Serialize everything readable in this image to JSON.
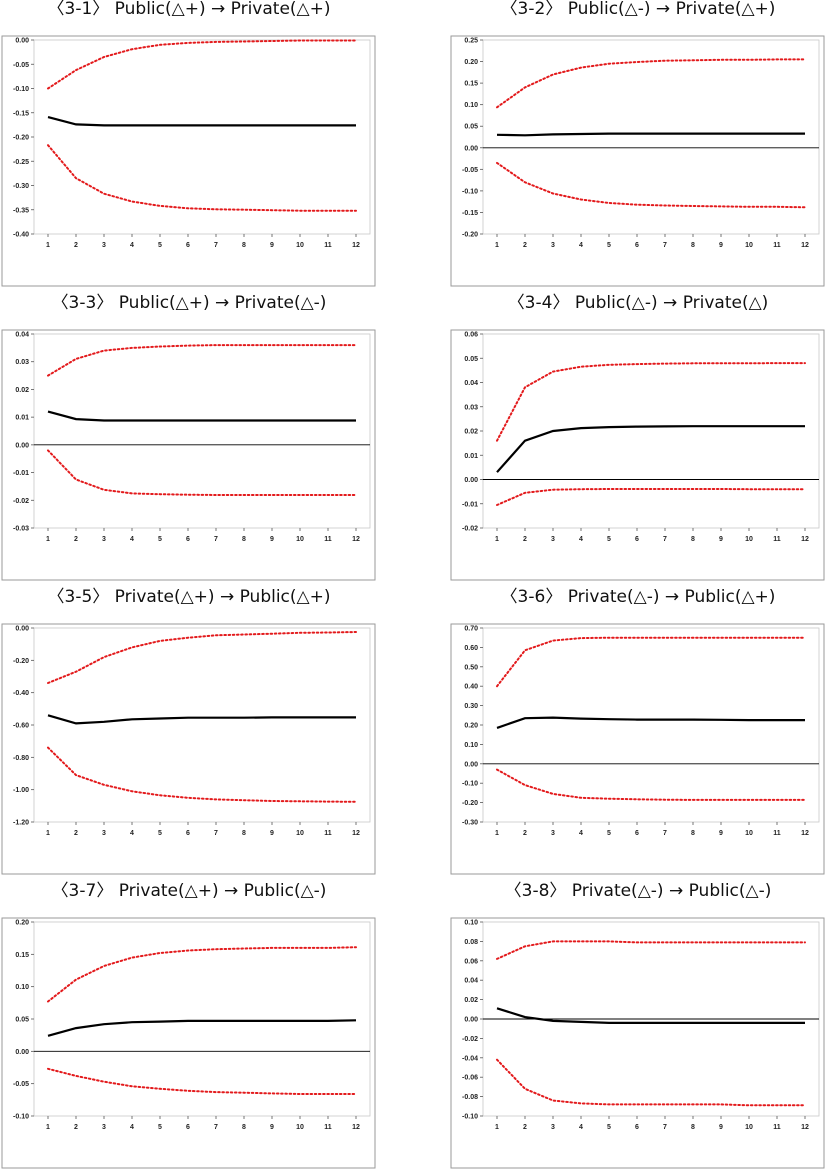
{
  "colors": {
    "estimate": "#000000",
    "band": "#e31a1c",
    "frame": "#9a9a9a"
  },
  "chart_data": [
    {
      "type": "line",
      "title": "〈3-1〉 Public(△+) → Private(△+)",
      "x": [
        1,
        2,
        3,
        4,
        5,
        6,
        7,
        8,
        9,
        10,
        11,
        12
      ],
      "yticks": [
        "0.00",
        "-0.05",
        "-0.10",
        "-0.15",
        "-0.20",
        "-0.25",
        "-0.30",
        "-0.35",
        "-0.40"
      ],
      "ylim": [
        -0.4,
        0.0
      ],
      "series": [
        {
          "role": "upper",
          "values": [
            -0.1,
            -0.062,
            -0.035,
            -0.019,
            -0.01,
            -0.006,
            -0.004,
            -0.003,
            -0.002,
            -0.001,
            -0.001,
            -0.001
          ]
        },
        {
          "role": "estimate",
          "values": [
            -0.159,
            -0.174,
            -0.176,
            -0.176,
            -0.176,
            -0.176,
            -0.176,
            -0.176,
            -0.176,
            -0.176,
            -0.176,
            -0.176
          ]
        },
        {
          "role": "lower",
          "values": [
            -0.217,
            -0.285,
            -0.317,
            -0.333,
            -0.342,
            -0.347,
            -0.349,
            -0.35,
            -0.351,
            -0.352,
            -0.352,
            -0.352
          ]
        }
      ]
    },
    {
      "type": "line",
      "title": "〈3-2〉 Public(△-) → Private(△+)",
      "x": [
        1,
        2,
        3,
        4,
        5,
        6,
        7,
        8,
        9,
        10,
        11,
        12
      ],
      "yticks": [
        "0.25",
        "0.20",
        "0.15",
        "0.10",
        "0.05",
        "0.00",
        "-0.05",
        "-0.10",
        "-0.15",
        "-0.20"
      ],
      "ylim": [
        -0.2,
        0.25
      ],
      "series": [
        {
          "role": "upper",
          "values": [
            0.094,
            0.14,
            0.17,
            0.186,
            0.195,
            0.199,
            0.202,
            0.203,
            0.204,
            0.204,
            0.205,
            0.205
          ]
        },
        {
          "role": "estimate",
          "values": [
            0.03,
            0.029,
            0.031,
            0.032,
            0.033,
            0.033,
            0.033,
            0.033,
            0.033,
            0.033,
            0.033,
            0.033
          ]
        },
        {
          "role": "lower",
          "values": [
            -0.035,
            -0.08,
            -0.106,
            -0.12,
            -0.128,
            -0.132,
            -0.134,
            -0.135,
            -0.136,
            -0.137,
            -0.137,
            -0.138
          ]
        }
      ]
    },
    {
      "type": "line",
      "title": "〈3-3〉 Public(△+) → Private(△-)",
      "x": [
        1,
        2,
        3,
        4,
        5,
        6,
        7,
        8,
        9,
        10,
        11,
        12
      ],
      "yticks": [
        "0.04",
        "0.03",
        "0.02",
        "0.01",
        "0.00",
        "-0.01",
        "-0.02",
        "-0.03"
      ],
      "ylim": [
        -0.03,
        0.04
      ],
      "series": [
        {
          "role": "upper",
          "values": [
            0.025,
            0.031,
            0.034,
            0.035,
            0.0355,
            0.0358,
            0.036,
            0.036,
            0.036,
            0.036,
            0.036,
            0.036
          ]
        },
        {
          "role": "estimate",
          "values": [
            0.012,
            0.0093,
            0.0088,
            0.0088,
            0.0088,
            0.0088,
            0.0088,
            0.0088,
            0.0088,
            0.0088,
            0.0088,
            0.0088
          ]
        },
        {
          "role": "lower",
          "values": [
            -0.002,
            -0.0125,
            -0.0162,
            -0.0175,
            -0.0178,
            -0.018,
            -0.0181,
            -0.0181,
            -0.0181,
            -0.0181,
            -0.0181,
            -0.0181
          ]
        }
      ]
    },
    {
      "type": "line",
      "title": "〈3-4〉 Public(△-) → Private(△)",
      "x": [
        1,
        2,
        3,
        4,
        5,
        6,
        7,
        8,
        9,
        10,
        11,
        12
      ],
      "yticks": [
        "0.06",
        "0.05",
        "0.04",
        "0.03",
        "0.02",
        "0.01",
        "0.00",
        "-0.01",
        "-0.02"
      ],
      "ylim": [
        -0.02,
        0.06
      ],
      "series": [
        {
          "role": "upper",
          "values": [
            0.016,
            0.038,
            0.0445,
            0.0465,
            0.0473,
            0.0476,
            0.0478,
            0.0479,
            0.0479,
            0.0479,
            0.048,
            0.048
          ]
        },
        {
          "role": "estimate",
          "values": [
            0.003,
            0.016,
            0.02,
            0.0212,
            0.0216,
            0.0218,
            0.0219,
            0.022,
            0.022,
            0.022,
            0.022,
            0.022
          ]
        },
        {
          "role": "lower",
          "values": [
            -0.0105,
            -0.0055,
            -0.0042,
            -0.004,
            -0.0039,
            -0.0039,
            -0.0039,
            -0.0039,
            -0.0039,
            -0.004,
            -0.004,
            -0.004
          ]
        }
      ]
    },
    {
      "type": "line",
      "title": "〈3-5〉 Private(△+) → Public(△+)",
      "x": [
        1,
        2,
        3,
        4,
        5,
        6,
        7,
        8,
        9,
        10,
        11,
        12
      ],
      "yticks": [
        "0.00",
        "-0.20",
        "-0.40",
        "-0.60",
        "-0.80",
        "-1.00",
        "-1.20"
      ],
      "ylim": [
        -1.2,
        0.0
      ],
      "series": [
        {
          "role": "upper",
          "values": [
            -0.34,
            -0.27,
            -0.18,
            -0.12,
            -0.08,
            -0.06,
            -0.045,
            -0.04,
            -0.035,
            -0.03,
            -0.028,
            -0.025
          ]
        },
        {
          "role": "estimate",
          "values": [
            -0.54,
            -0.59,
            -0.58,
            -0.565,
            -0.56,
            -0.555,
            -0.555,
            -0.555,
            -0.553,
            -0.553,
            -0.553,
            -0.553
          ]
        },
        {
          "role": "lower",
          "values": [
            -0.74,
            -0.91,
            -0.97,
            -1.01,
            -1.035,
            -1.05,
            -1.06,
            -1.065,
            -1.07,
            -1.072,
            -1.074,
            -1.075
          ]
        }
      ]
    },
    {
      "type": "line",
      "title": "〈3-6〉 Private(△-) → Public(△+)",
      "x": [
        1,
        2,
        3,
        4,
        5,
        6,
        7,
        8,
        9,
        10,
        11,
        12
      ],
      "yticks": [
        "0.70",
        "0.60",
        "0.50",
        "0.40",
        "0.30",
        "0.20",
        "0.10",
        "0.00",
        "-0.10",
        "-0.20",
        "-0.30"
      ],
      "ylim": [
        -0.3,
        0.7
      ],
      "series": [
        {
          "role": "upper",
          "values": [
            0.4,
            0.585,
            0.635,
            0.648,
            0.65,
            0.65,
            0.65,
            0.65,
            0.65,
            0.65,
            0.65,
            0.65
          ]
        },
        {
          "role": "estimate",
          "values": [
            0.185,
            0.235,
            0.238,
            0.233,
            0.23,
            0.228,
            0.228,
            0.228,
            0.227,
            0.225,
            0.225,
            0.225
          ]
        },
        {
          "role": "lower",
          "values": [
            -0.03,
            -0.11,
            -0.155,
            -0.175,
            -0.18,
            -0.183,
            -0.185,
            -0.186,
            -0.186,
            -0.186,
            -0.186,
            -0.186
          ]
        }
      ]
    },
    {
      "type": "line",
      "title": "〈3-7〉 Private(△+) → Public(△-)",
      "x": [
        1,
        2,
        3,
        4,
        5,
        6,
        7,
        8,
        9,
        10,
        11,
        12
      ],
      "yticks": [
        "0.20",
        "0.15",
        "0.10",
        "0.05",
        "0.00",
        "-0.05",
        "-0.10"
      ],
      "ylim": [
        -0.1,
        0.2
      ],
      "series": [
        {
          "role": "upper",
          "values": [
            0.077,
            0.111,
            0.132,
            0.145,
            0.152,
            0.156,
            0.158,
            0.159,
            0.16,
            0.16,
            0.16,
            0.161
          ]
        },
        {
          "role": "estimate",
          "values": [
            0.024,
            0.036,
            0.042,
            0.045,
            0.046,
            0.047,
            0.047,
            0.047,
            0.047,
            0.047,
            0.047,
            0.048
          ]
        },
        {
          "role": "lower",
          "values": [
            -0.027,
            -0.038,
            -0.047,
            -0.054,
            -0.058,
            -0.061,
            -0.063,
            -0.064,
            -0.065,
            -0.066,
            -0.066,
            -0.066
          ]
        }
      ]
    },
    {
      "type": "line",
      "title": "〈3-8〉 Private(△-) → Public(△-)",
      "x": [
        1,
        2,
        3,
        4,
        5,
        6,
        7,
        8,
        9,
        10,
        11,
        12
      ],
      "yticks": [
        "0.10",
        "0.08",
        "0.06",
        "0.04",
        "0.02",
        "0.00",
        "-0.02",
        "-0.04",
        "-0.06",
        "-0.08",
        "-0.10"
      ],
      "ylim": [
        -0.1,
        0.1
      ],
      "series": [
        {
          "role": "upper",
          "values": [
            0.062,
            0.075,
            0.08,
            0.08,
            0.08,
            0.079,
            0.079,
            0.079,
            0.079,
            0.079,
            0.079,
            0.079
          ]
        },
        {
          "role": "estimate",
          "values": [
            0.011,
            0.002,
            -0.002,
            -0.003,
            -0.004,
            -0.004,
            -0.004,
            -0.004,
            -0.004,
            -0.004,
            -0.004,
            -0.004
          ]
        },
        {
          "role": "lower",
          "values": [
            -0.042,
            -0.072,
            -0.084,
            -0.087,
            -0.088,
            -0.088,
            -0.088,
            -0.088,
            -0.088,
            -0.089,
            -0.089,
            -0.089
          ]
        }
      ]
    }
  ]
}
